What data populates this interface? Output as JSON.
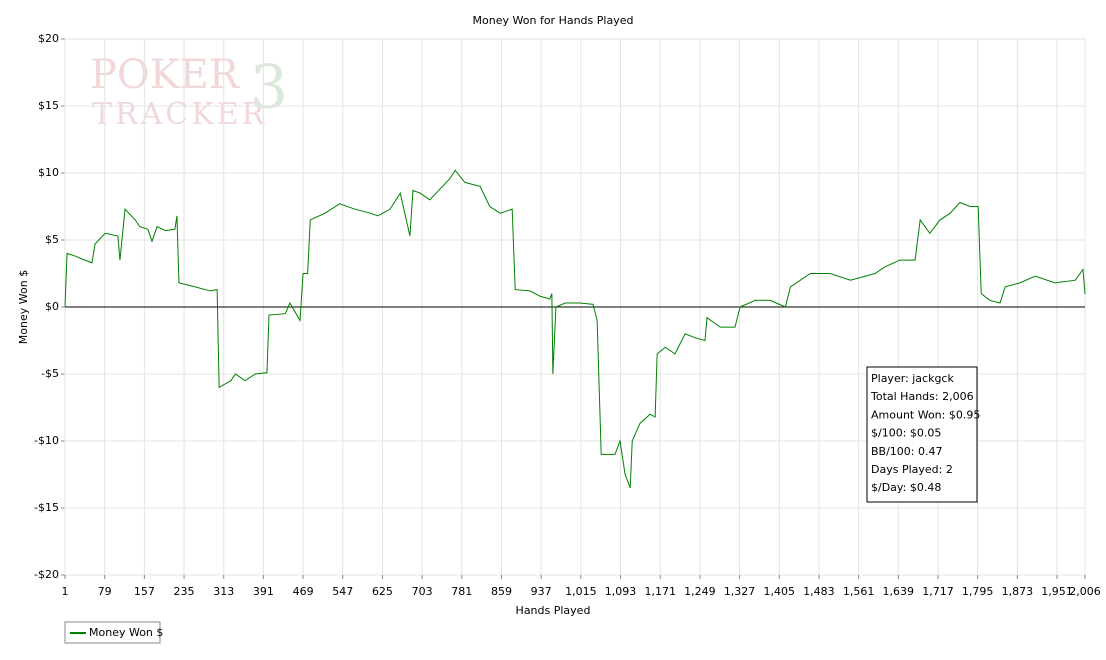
{
  "chart_data": {
    "type": "line",
    "title": "Money Won for Hands Played",
    "x_label": "Hands Played",
    "y_label": "Money Won $",
    "watermark": [
      "POKER",
      "TRACKER",
      "3"
    ],
    "xlim": [
      1,
      2006
    ],
    "ylim": [
      -20,
      20
    ],
    "xticks": [
      1,
      79,
      157,
      235,
      313,
      391,
      469,
      547,
      625,
      703,
      781,
      859,
      937,
      {
        "value": 1015,
        "label": "1,015"
      },
      {
        "value": 1093,
        "label": "1,093"
      },
      {
        "value": 1171,
        "label": "1,171"
      },
      {
        "value": 1249,
        "label": "1,249"
      },
      {
        "value": 1327,
        "label": "1,327"
      },
      {
        "value": 1405,
        "label": "1,405"
      },
      {
        "value": 1483,
        "label": "1,483"
      },
      {
        "value": 1561,
        "label": "1,561"
      },
      {
        "value": 1639,
        "label": "1,639"
      },
      {
        "value": 1717,
        "label": "1,717"
      },
      {
        "value": 1795,
        "label": "1,795"
      },
      {
        "value": 1873,
        "label": "1,873"
      },
      {
        "value": 1951,
        "label": "1,951"
      },
      {
        "value": 2006,
        "label": "2,006"
      }
    ],
    "yticks": [
      {
        "value": 20,
        "label": "$20"
      },
      {
        "value": 15,
        "label": "$15"
      },
      {
        "value": 10,
        "label": "$10"
      },
      {
        "value": 5,
        "label": "$5"
      },
      {
        "value": 0,
        "label": "$0"
      },
      {
        "value": -5,
        "label": "-$5"
      },
      {
        "value": -10,
        "label": "-$10"
      },
      {
        "value": -15,
        "label": "-$15"
      },
      {
        "value": -20,
        "label": "-$20"
      }
    ],
    "grid": true,
    "legend": "bottom-left",
    "x": [
      1,
      5,
      21,
      40,
      54,
      60,
      80,
      105,
      109,
      119,
      139,
      148,
      164,
      172,
      182,
      198,
      217,
      221,
      225,
      257,
      286,
      300,
      304,
      327,
      336,
      355,
      375,
      398,
      402,
      434,
      443,
      463,
      469,
      478,
      483,
      512,
      541,
      571,
      601,
      616,
      640,
      660,
      679,
      685,
      699,
      718,
      738,
      758,
      768,
      787,
      817,
      836,
      856,
      880,
      886,
      915,
      935,
      954,
      958,
      960,
      966,
      984,
      1013,
      1039,
      1047,
      1055,
      1082,
      1092,
      1102,
      1112,
      1116,
      1131,
      1151,
      1161,
      1165,
      1181,
      1200,
      1220,
      1240,
      1259,
      1263,
      1289,
      1318,
      1328,
      1358,
      1387,
      1417,
      1427,
      1466,
      1505,
      1545,
      1593,
      1613,
      1642,
      1672,
      1682,
      1701,
      1721,
      1741,
      1760,
      1780,
      1796,
      1802,
      1819,
      1839,
      1849,
      1878,
      1908,
      1947,
      1987,
      2002,
      2006
    ],
    "series": [
      {
        "name": "Money Won $",
        "color": "#008000",
        "values": [
          0,
          4.0,
          3.8,
          3.5,
          3.3,
          4.7,
          5.5,
          5.3,
          3.5,
          7.3,
          6.5,
          6.0,
          5.8,
          4.9,
          6.0,
          5.7,
          5.8,
          6.8,
          1.8,
          1.5,
          1.2,
          1.3,
          -6.0,
          -5.5,
          -5.0,
          -5.5,
          -5.0,
          -4.9,
          -0.6,
          -0.5,
          0.3,
          -1.0,
          2.5,
          2.5,
          6.5,
          7.0,
          7.7,
          7.3,
          7.0,
          6.8,
          7.3,
          8.5,
          5.3,
          8.7,
          8.5,
          8.0,
          8.8,
          9.6,
          10.2,
          9.3,
          9.0,
          7.5,
          7.0,
          7.3,
          1.3,
          1.2,
          0.8,
          0.6,
          1.0,
          -5.0,
          0.0,
          0.3,
          0.3,
          0.2,
          -1.0,
          -11.0,
          -11.0,
          -10.0,
          -12.5,
          -13.5,
          -10.0,
          -8.7,
          -8.0,
          -8.2,
          -3.5,
          -3.0,
          -3.5,
          -2.0,
          -2.3,
          -2.5,
          -0.8,
          -1.5,
          -1.5,
          0.0,
          0.5,
          0.5,
          0.0,
          1.5,
          2.5,
          2.5,
          2.0,
          2.5,
          3.0,
          3.5,
          3.5,
          6.5,
          5.5,
          6.5,
          7.0,
          7.8,
          7.5,
          7.5,
          1.0,
          0.5,
          0.3,
          1.5,
          1.8,
          2.3,
          1.8,
          2.0,
          2.8,
          0.95
        ]
      }
    ],
    "info": [
      "Player: jackgck",
      "Total Hands: 2,006",
      "Amount Won: $0.95",
      "$/100: $0.05",
      "BB/100: 0.47",
      "Days Played: 2",
      "$/Day: $0.48"
    ]
  }
}
